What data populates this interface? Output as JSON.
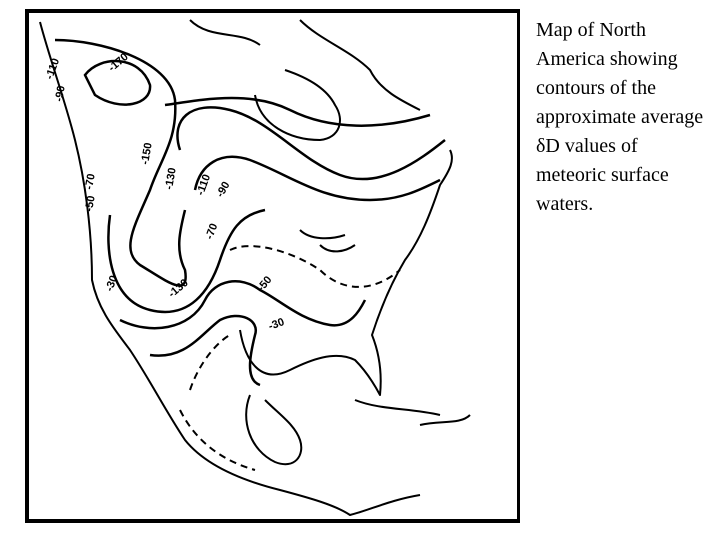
{
  "caption": "Map of North America showing contours of the approximate average δD values of meteoric surface waters.",
  "map": {
    "contour_labels": [
      "-170",
      "-150",
      "-130",
      "-110",
      "-90",
      "-70",
      "-50",
      "-30",
      "-130",
      "-110",
      "-90",
      "-50",
      "-70",
      "-30"
    ]
  }
}
